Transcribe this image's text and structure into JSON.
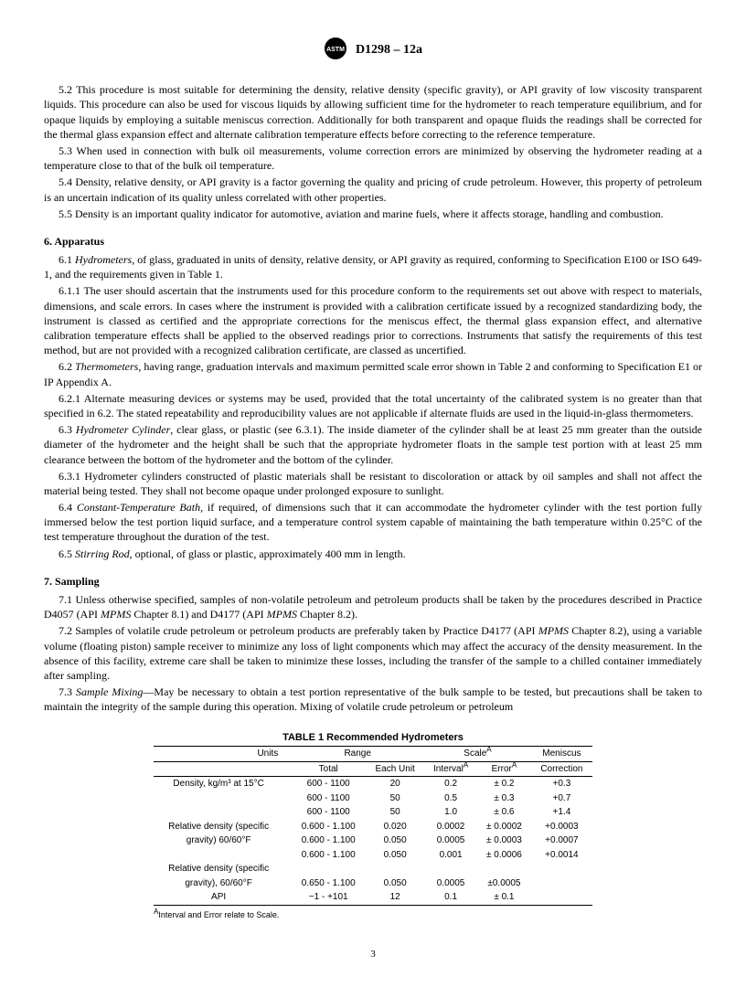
{
  "header": {
    "docnum": "D1298 – 12a"
  },
  "section5": {
    "p52": "5.2 This procedure is most suitable for determining the density, relative density (specific gravity), or API gravity of low viscosity transparent liquids. This procedure can also be used for viscous liquids by allowing sufficient time for the hydrometer to reach temperature equilibrium, and for opaque liquids by employing a suitable meniscus correction. Additionally for both transparent and opaque fluids the readings shall be corrected for the thermal glass expansion effect and alternate calibration temperature effects before correcting to the reference temperature.",
    "p53": "5.3 When used in connection with bulk oil measurements, volume correction errors are minimized by observing the hydrometer reading at a temperature close to that of the bulk oil temperature.",
    "p54": "5.4 Density, relative density, or API gravity is a factor governing the quality and pricing of crude petroleum. However, this property of petroleum is an uncertain indication of its quality unless correlated with other properties.",
    "p55": "5.5 Density is an important quality indicator for automotive, aviation and marine fuels, where it affects storage, handling and combustion."
  },
  "section6": {
    "head": "6. Apparatus",
    "p61a": "6.1 ",
    "p61b": "Hydrometers",
    "p61c": ", of glass, graduated in units of density, relative density, or API gravity as required, conforming to Specification E100 or ISO 649-1, and the requirements given in Table 1.",
    "p611": "6.1.1 The user should ascertain that the instruments used for this procedure conform to the requirements set out above with respect to materials, dimensions, and scale errors. In cases where the instrument is provided with a calibration certificate issued by a recognized standardizing body, the instrument is classed as certified and the appropriate corrections for the meniscus effect, the thermal glass expansion effect, and alternative calibration temperature effects shall be applied to the observed readings prior to corrections. Instruments that satisfy the requirements of this test method, but are not provided with a recognized calibration certificate, are classed as uncertified.",
    "p62a": "6.2 ",
    "p62b": "Thermometers",
    "p62c": ", having range, graduation intervals and maximum permitted scale error shown in Table 2 and conforming to Specification E1 or IP Appendix A.",
    "p621": "6.2.1 Alternate measuring devices or systems may be used, provided that the total uncertainty of the calibrated system is no greater than that specified in 6.2. The stated repeatability and reproducibility values are not applicable if alternate fluids are used in the liquid-in-glass thermometers.",
    "p63a": "6.3 ",
    "p63b": "Hydrometer Cylinder",
    "p63c": ", clear glass, or plastic (see 6.3.1). The inside diameter of the cylinder shall be at least 25 mm greater than the outside diameter of the hydrometer and the height shall be such that the appropriate hydrometer floats in the sample test portion with at least 25 mm clearance between the bottom of the hydrometer and the bottom of the cylinder.",
    "p631": "6.3.1 Hydrometer cylinders constructed of plastic materials shall be resistant to discoloration or attack by oil samples and shall not affect the material being tested. They shall not become opaque under prolonged exposure to sunlight.",
    "p64a": "6.4 ",
    "p64b": "Constant-Temperature Bath",
    "p64c": ", if required, of dimensions such that it can accommodate the hydrometer cylinder with the test portion fully immersed below the test portion liquid surface, and a temperature control system capable of maintaining the bath temperature within 0.25°C of the test temperature throughout the duration of the test.",
    "p65a": "6.5 ",
    "p65b": "Stirring Rod",
    "p65c": ", optional, of glass or plastic, approximately 400 mm in length."
  },
  "section7": {
    "head": "7. Sampling",
    "p71a": "7.1 Unless otherwise specified, samples of non-volatile petroleum and petroleum products shall be taken by the procedures described in Practice D4057 (API ",
    "p71b": "MPMS",
    "p71c": " Chapter 8.1) and D4177 (API ",
    "p71d": "MPMS",
    "p71e": " Chapter 8.2).",
    "p72a": "7.2 Samples of volatile crude petroleum or petroleum products are preferably taken by Practice D4177 (API ",
    "p72b": "MPMS",
    "p72c": " Chapter 8.2), using a variable volume (floating piston) sample receiver to minimize any loss of light components which may affect the accuracy of the density measurement. In the absence of this facility, extreme care shall be taken to minimize these losses, including the transfer of the sample to a chilled container immediately after sampling.",
    "p73a": "7.3 ",
    "p73b": "Sample Mixing",
    "p73c": "—May be necessary to obtain a test portion representative of the bulk sample to be tested, but precautions shall be taken to maintain the integrity of the sample during this operation. Mixing of volatile crude petroleum or petroleum"
  },
  "table1": {
    "title": "TABLE 1 Recommended Hydrometers",
    "headers": {
      "units": "Units",
      "range": "Range",
      "scale": "Scale",
      "meniscus": "Meniscus",
      "total": "Total",
      "each": "Each Unit",
      "interval": "Interval",
      "error": "Error",
      "correction": "Correction"
    },
    "rows": [
      {
        "units": "Density, kg/m³ at 15°C",
        "total": "600 - 1100",
        "each": "20",
        "interval": "0.2",
        "error": "± 0.2",
        "corr": "+0.3"
      },
      {
        "units": "",
        "total": "600 - 1100",
        "each": "50",
        "interval": "0.5",
        "error": "± 0.3",
        "corr": "+0.7"
      },
      {
        "units": "",
        "total": "600 - 1100",
        "each": "50",
        "interval": "1.0",
        "error": "± 0.6",
        "corr": "+1.4"
      },
      {
        "units": "Relative density (specific",
        "total": "0.600 - 1.100",
        "each": "0.020",
        "interval": "0.0002",
        "error": "± 0.0002",
        "corr": "+0.0003"
      },
      {
        "units": "gravity) 60/60°F",
        "total": "0.600 - 1.100",
        "each": "0.050",
        "interval": "0.0005",
        "error": "± 0.0003",
        "corr": "+0.0007"
      },
      {
        "units": "",
        "total": "0.600 - 1.100",
        "each": "0.050",
        "interval": "0.001",
        "error": "± 0.0006",
        "corr": "+0.0014"
      },
      {
        "units": "Relative density (specific",
        "total": "",
        "each": "",
        "interval": "",
        "error": "",
        "corr": ""
      },
      {
        "units": "gravity), 60/60°F",
        "total": "0.650 - 1.100",
        "each": "0.050",
        "interval": "0.0005",
        "error": "±0.0005",
        "corr": ""
      },
      {
        "units": "API",
        "total": "−1 - +101",
        "each": "12",
        "interval": "0.1",
        "error": "± 0.1",
        "corr": ""
      }
    ],
    "footnote_sup": "A",
    "footnote": "Interval and Error relate to Scale."
  },
  "pagenum": "3"
}
